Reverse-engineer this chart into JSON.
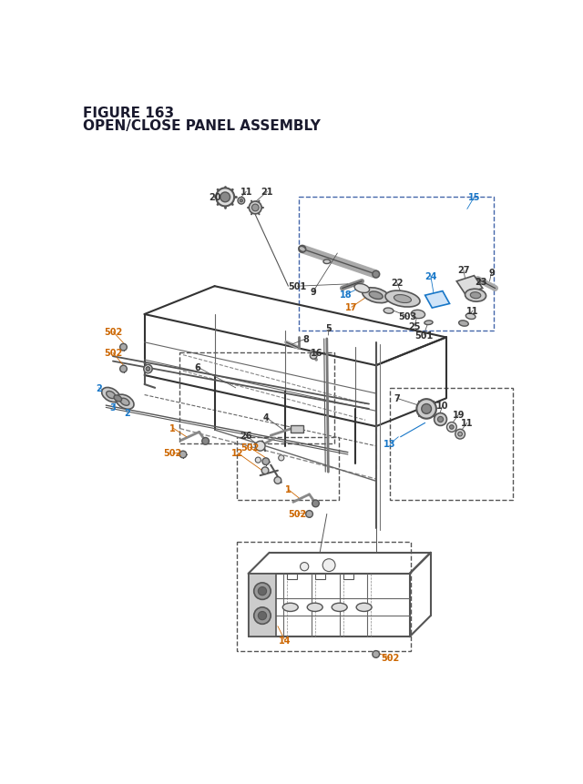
{
  "title_line1": "FIGURE 163",
  "title_line2": "OPEN/CLOSE PANEL ASSEMBLY",
  "title_color": "#1a1a2e",
  "title_fontsize": 11,
  "bg_color": "#ffffff",
  "fig_width": 6.4,
  "fig_height": 8.62,
  "dpi": 100
}
